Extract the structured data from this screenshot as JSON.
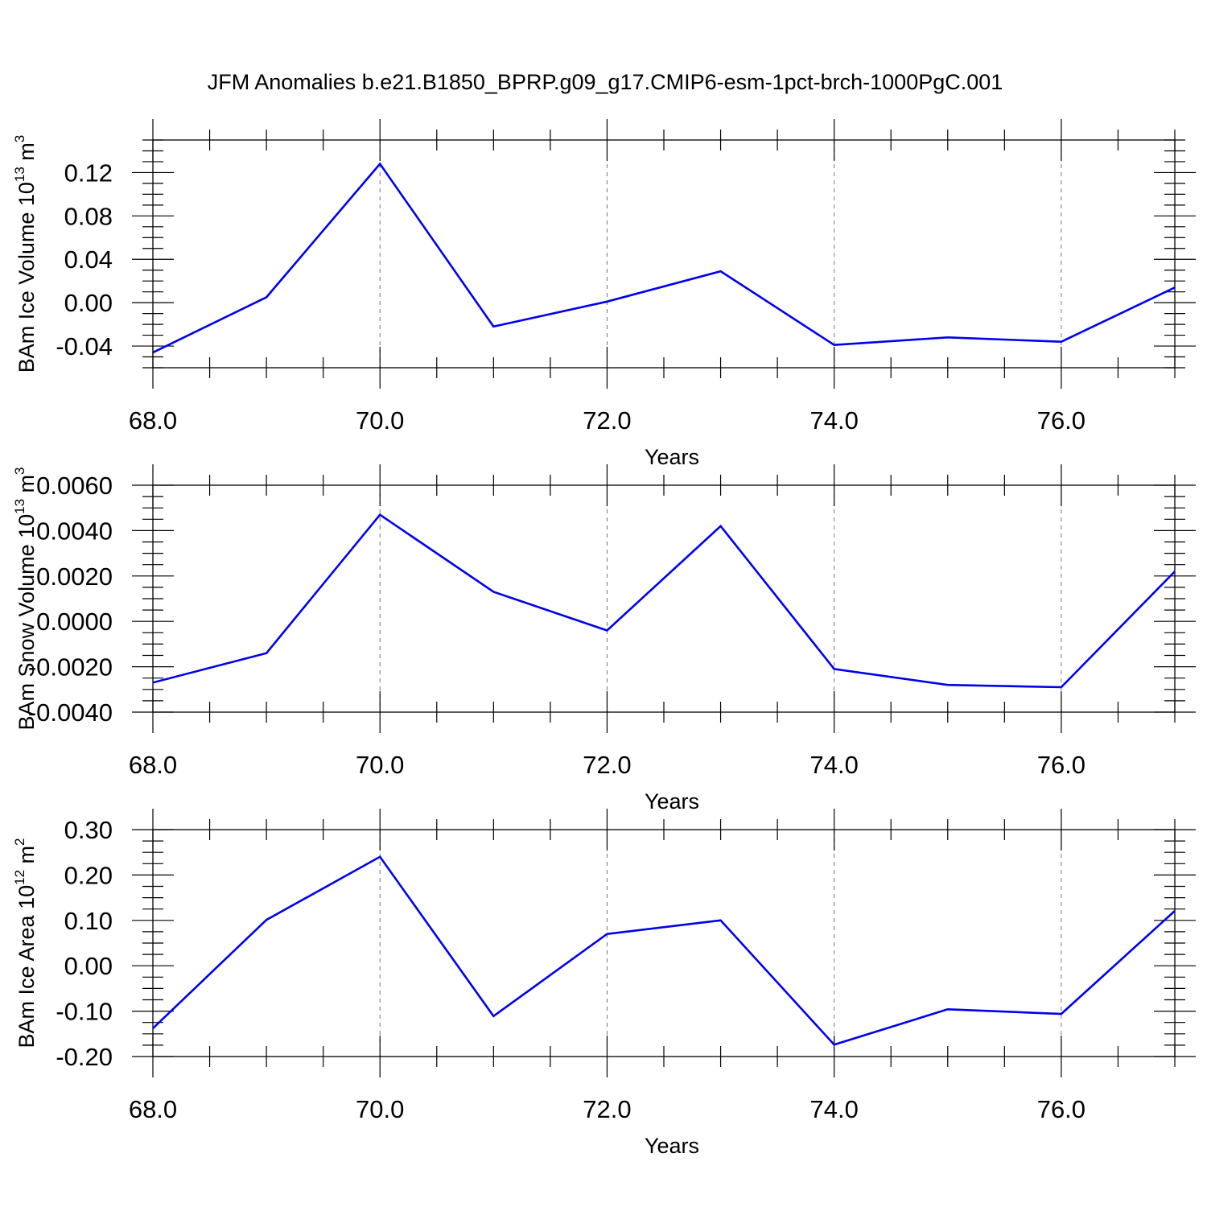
{
  "figure": {
    "title": "JFM Anomalies b.e21.B1850_BPRP.g09_g17.CMIP6-esm-1pct-brch-1000PgC.001",
    "line_color": "#0000ee"
  },
  "chart_data": [
    {
      "type": "line",
      "xlabel": "Years",
      "ylabel": {
        "prefix": "BAm Ice Volume 10",
        "exp": "13",
        "unit": " m",
        "unit_exp": "3"
      },
      "x": [
        68,
        69,
        70,
        71,
        72,
        73,
        74,
        75,
        76,
        77
      ],
      "y": [
        -0.046,
        0.005,
        0.128,
        -0.022,
        0.001,
        0.029,
        -0.039,
        -0.032,
        -0.036,
        0.014
      ],
      "xlim": [
        68,
        77
      ],
      "ylim": [
        -0.06,
        0.15
      ],
      "x_ticks": [
        68,
        70,
        72,
        74,
        76
      ],
      "x_tick_labels": [
        "68.0",
        "70.0",
        "72.0",
        "74.0",
        "76.0"
      ],
      "y_ticks": [
        -0.04,
        0.0,
        0.04,
        0.08,
        0.12
      ],
      "y_tick_labels": [
        "-0.04",
        "0.00",
        "0.04",
        "0.08",
        "0.12"
      ],
      "y_minor_step": 0.01,
      "grid": "x-major-dashed"
    },
    {
      "type": "line",
      "xlabel": "Years",
      "ylabel": {
        "prefix": "BAm Snow Volume 10",
        "exp": "13",
        "unit": " m",
        "unit_exp": "3"
      },
      "x": [
        68,
        69,
        70,
        71,
        72,
        73,
        74,
        75,
        76,
        77
      ],
      "y": [
        -0.0027,
        -0.0014,
        0.0047,
        0.0013,
        -0.0004,
        0.0042,
        -0.0021,
        -0.0028,
        -0.0029,
        0.0022
      ],
      "xlim": [
        68,
        77
      ],
      "ylim": [
        -0.004,
        0.006
      ],
      "x_ticks": [
        68,
        70,
        72,
        74,
        76
      ],
      "x_tick_labels": [
        "68.0",
        "70.0",
        "72.0",
        "74.0",
        "76.0"
      ],
      "y_ticks": [
        -0.004,
        -0.002,
        0.0,
        0.002,
        0.004,
        0.006
      ],
      "y_tick_labels": [
        "-0.0040",
        "-0.0020",
        "0.0000",
        "0.0020",
        "0.0040",
        "0.0060"
      ],
      "y_minor_step": 0.0005,
      "grid": "x-major-dashed"
    },
    {
      "type": "line",
      "xlabel": "Years",
      "ylabel": {
        "prefix": "BAm Ice Area 10",
        "exp": "12",
        "unit": " m",
        "unit_exp": "2"
      },
      "x": [
        68,
        69,
        70,
        71,
        72,
        73,
        74,
        75,
        76,
        77
      ],
      "y": [
        -0.138,
        0.101,
        0.24,
        -0.111,
        0.07,
        0.1,
        -0.174,
        -0.096,
        -0.106,
        0.121
      ],
      "xlim": [
        68,
        77
      ],
      "ylim": [
        -0.2,
        0.3
      ],
      "x_ticks": [
        68,
        70,
        72,
        74,
        76
      ],
      "x_tick_labels": [
        "68.0",
        "70.0",
        "72.0",
        "74.0",
        "76.0"
      ],
      "y_ticks": [
        -0.2,
        -0.1,
        0.0,
        0.1,
        0.2,
        0.3
      ],
      "y_tick_labels": [
        "-0.20",
        "-0.10",
        "0.00",
        "0.10",
        "0.20",
        "0.30"
      ],
      "y_minor_step": 0.025,
      "grid": "x-major-dashed"
    }
  ]
}
